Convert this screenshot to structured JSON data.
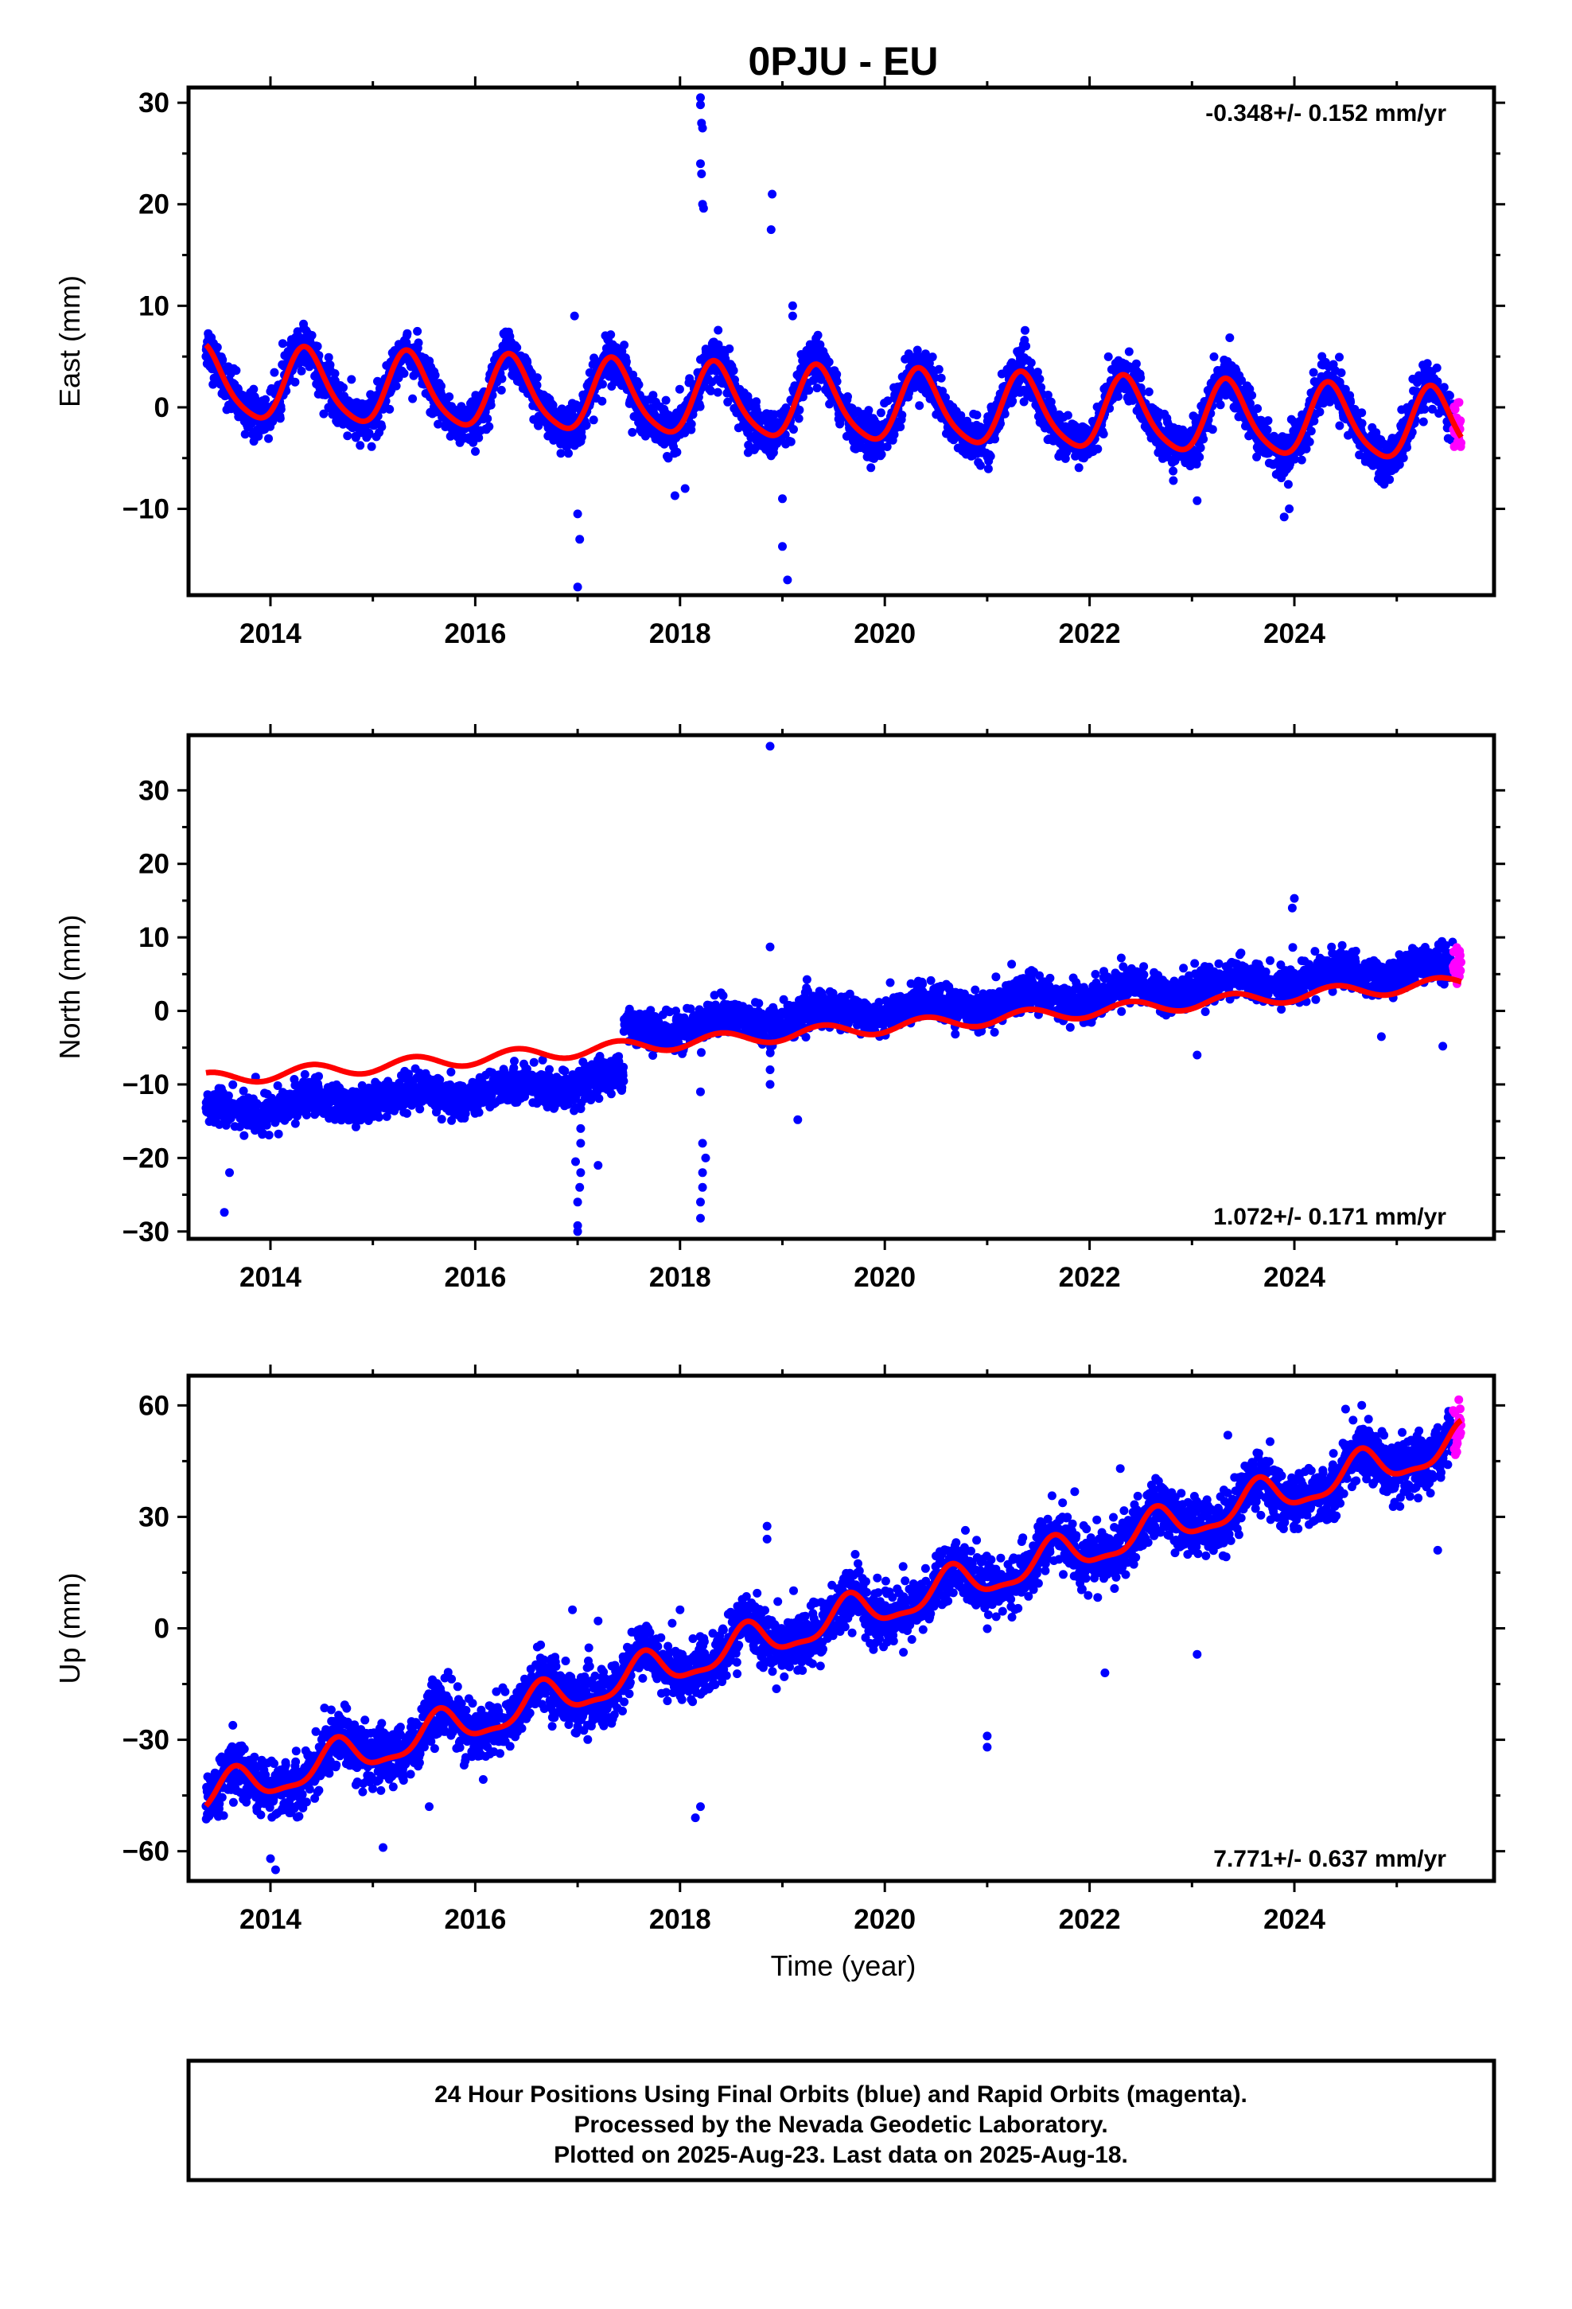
{
  "title": "0PJU - EU",
  "x_axis_label": "Time (year)",
  "footer": {
    "line1": "24 Hour Positions Using Final Orbits (blue) and Rapid Orbits (magenta).",
    "line2": "Processed by the Nevada Geodetic Laboratory.",
    "line3": "Plotted on 2025-Aug-23. Last data on 2025-Aug-18."
  },
  "colors": {
    "final": "#0000ff",
    "rapid": "#ff00ff",
    "model": "#ff0000",
    "frame": "#000000"
  },
  "chart_data": [
    {
      "type": "scatter",
      "name": "east",
      "ylabel": "East (mm)",
      "rate_text": "-0.348+/- 0.152 mm/yr",
      "rate_position": "top-right",
      "xlim": [
        2013.2,
        2025.95
      ],
      "ylim": [
        -18.5,
        31.5
      ],
      "xticks": [
        2014,
        2016,
        2018,
        2020,
        2022,
        2024
      ],
      "yticks": [
        -10,
        0,
        10,
        20,
        30
      ],
      "grid": false,
      "start": 2013.37,
      "end": 2025.63,
      "rapid_start": 2025.55,
      "model": {
        "description": "trend + annual + semiannual fit (red line)",
        "intercept_mm": 2.3,
        "ref_year": 2013.37,
        "rate_mm_yr": -0.348,
        "annual_amp_mm": 3.5,
        "annual_peak": 2014.35,
        "semi_amp_mm": 0.6,
        "semi_peak": 2014.3,
        "offsets": []
      },
      "scatter_sd_mm": 1.1,
      "outliers": [
        {
          "x": 2018.2,
          "y": 30.5
        },
        {
          "x": 2018.2,
          "y": 29.8
        },
        {
          "x": 2018.21,
          "y": 28.0
        },
        {
          "x": 2018.22,
          "y": 27.5
        },
        {
          "x": 2018.2,
          "y": 24.0
        },
        {
          "x": 2018.21,
          "y": 23.0
        },
        {
          "x": 2018.22,
          "y": 20.0
        },
        {
          "x": 2018.23,
          "y": 19.6
        },
        {
          "x": 2018.9,
          "y": 21.0
        },
        {
          "x": 2018.89,
          "y": 17.5
        },
        {
          "x": 2017.0,
          "y": -17.7
        },
        {
          "x": 2017.02,
          "y": -13.0
        },
        {
          "x": 2017.0,
          "y": -10.5
        },
        {
          "x": 2016.97,
          "y": 9.0
        },
        {
          "x": 2019.05,
          "y": -17.0
        },
        {
          "x": 2019.0,
          "y": -13.7
        },
        {
          "x": 2019.0,
          "y": -9.0
        },
        {
          "x": 2019.1,
          "y": 10.0
        },
        {
          "x": 2019.1,
          "y": 9.0
        },
        {
          "x": 2017.95,
          "y": -8.7
        },
        {
          "x": 2018.05,
          "y": -8.0
        },
        {
          "x": 2023.05,
          "y": -9.2
        },
        {
          "x": 2023.9,
          "y": -10.8
        },
        {
          "x": 2023.95,
          "y": -10.0
        }
      ]
    },
    {
      "type": "scatter",
      "name": "north",
      "ylabel": "North (mm)",
      "rate_text": "1.072+/- 0.171 mm/yr",
      "rate_position": "bottom-right",
      "xlim": [
        2013.2,
        2025.95
      ],
      "ylim": [
        -31,
        37.5
      ],
      "xticks": [
        2014,
        2016,
        2018,
        2020,
        2022,
        2024
      ],
      "yticks": [
        -30,
        -20,
        -10,
        0,
        10,
        20,
        30
      ],
      "grid": false,
      "start": 2013.37,
      "end": 2025.63,
      "rapid_start": 2025.55,
      "model": {
        "description": "trend + annual fit (red line); points offset before 2017.45",
        "intercept_mm": -9.3,
        "ref_year": 2013.37,
        "rate_mm_yr": 1.072,
        "annual_amp_mm": 0.9,
        "annual_peak": 2014.4,
        "semi_amp_mm": 0.0,
        "semi_peak": 2014.4,
        "offsets": [
          {
            "start": 2013.37,
            "end": 2017.45,
            "delta_mm": -4.5
          },
          {
            "start": 2017.45,
            "end": 2025.7,
            "delta_mm": 2.2
          }
        ]
      },
      "scatter_sd_mm": 1.2,
      "outliers": [
        {
          "x": 2018.88,
          "y": 36.0
        },
        {
          "x": 2018.88,
          "y": 8.7
        },
        {
          "x": 2013.6,
          "y": -22.0
        },
        {
          "x": 2013.55,
          "y": -27.4
        },
        {
          "x": 2017.0,
          "y": -29.2
        },
        {
          "x": 2017.0,
          "y": -30.0
        },
        {
          "x": 2017.0,
          "y": -26.0
        },
        {
          "x": 2017.02,
          "y": -24.0
        },
        {
          "x": 2017.03,
          "y": -22.0
        },
        {
          "x": 2016.98,
          "y": -20.5
        },
        {
          "x": 2017.03,
          "y": -18.0
        },
        {
          "x": 2017.03,
          "y": -16.0
        },
        {
          "x": 2017.2,
          "y": -21.0
        },
        {
          "x": 2018.2,
          "y": -28.2
        },
        {
          "x": 2018.2,
          "y": -26.0
        },
        {
          "x": 2018.22,
          "y": -24.0
        },
        {
          "x": 2018.22,
          "y": -22.0
        },
        {
          "x": 2018.25,
          "y": -20.0
        },
        {
          "x": 2018.22,
          "y": -18.0
        },
        {
          "x": 2018.2,
          "y": -11.0
        },
        {
          "x": 2019.15,
          "y": -14.8
        },
        {
          "x": 2018.88,
          "y": -10.0
        },
        {
          "x": 2018.88,
          "y": -8.0
        },
        {
          "x": 2023.05,
          "y": -6.0
        },
        {
          "x": 2024.0,
          "y": 15.3
        },
        {
          "x": 2023.98,
          "y": 14.0
        },
        {
          "x": 2025.45,
          "y": -4.8
        },
        {
          "x": 2024.85,
          "y": -3.5
        }
      ]
    },
    {
      "type": "scatter",
      "name": "up",
      "ylabel": "Up (mm)",
      "rate_text": "7.771+/- 0.637 mm/yr",
      "rate_position": "bottom-right",
      "xlim": [
        2013.2,
        2025.95
      ],
      "ylim": [
        -68,
        68
      ],
      "xticks": [
        2014,
        2016,
        2018,
        2020,
        2022,
        2024
      ],
      "yticks": [
        -60,
        -30,
        0,
        30,
        60
      ],
      "grid": false,
      "start": 2013.37,
      "end": 2025.63,
      "rapid_start": 2025.55,
      "model": {
        "description": "trend + annual + semiannual fit (red line)",
        "intercept_mm": -45.5,
        "ref_year": 2013.37,
        "rate_mm_yr": 7.771,
        "annual_amp_mm": 4.8,
        "annual_peak": 2013.65,
        "semi_amp_mm": 1.5,
        "semi_peak": 2013.65,
        "offsets": []
      },
      "scatter_sd_mm": 3.8,
      "outliers": [
        {
          "x": 2014.05,
          "y": -65.0
        },
        {
          "x": 2014.0,
          "y": -62.0
        },
        {
          "x": 2015.1,
          "y": -59.0
        },
        {
          "x": 2018.15,
          "y": -51.0
        },
        {
          "x": 2018.2,
          "y": -48.0
        },
        {
          "x": 2016.95,
          "y": 5.0
        },
        {
          "x": 2017.2,
          "y": 2.0
        },
        {
          "x": 2018.0,
          "y": 5.0
        },
        {
          "x": 2018.85,
          "y": 27.5
        },
        {
          "x": 2018.85,
          "y": 24.0
        },
        {
          "x": 2021.0,
          "y": -32.0
        },
        {
          "x": 2021.0,
          "y": -29.0
        },
        {
          "x": 2022.15,
          "y": -12.0
        },
        {
          "x": 2023.05,
          "y": -7.0
        },
        {
          "x": 2022.3,
          "y": 43.0
        },
        {
          "x": 2025.4,
          "y": 21.0
        },
        {
          "x": 2024.5,
          "y": 59.0
        },
        {
          "x": 2023.35,
          "y": 52.0
        },
        {
          "x": 2015.55,
          "y": -48.0
        }
      ]
    }
  ]
}
